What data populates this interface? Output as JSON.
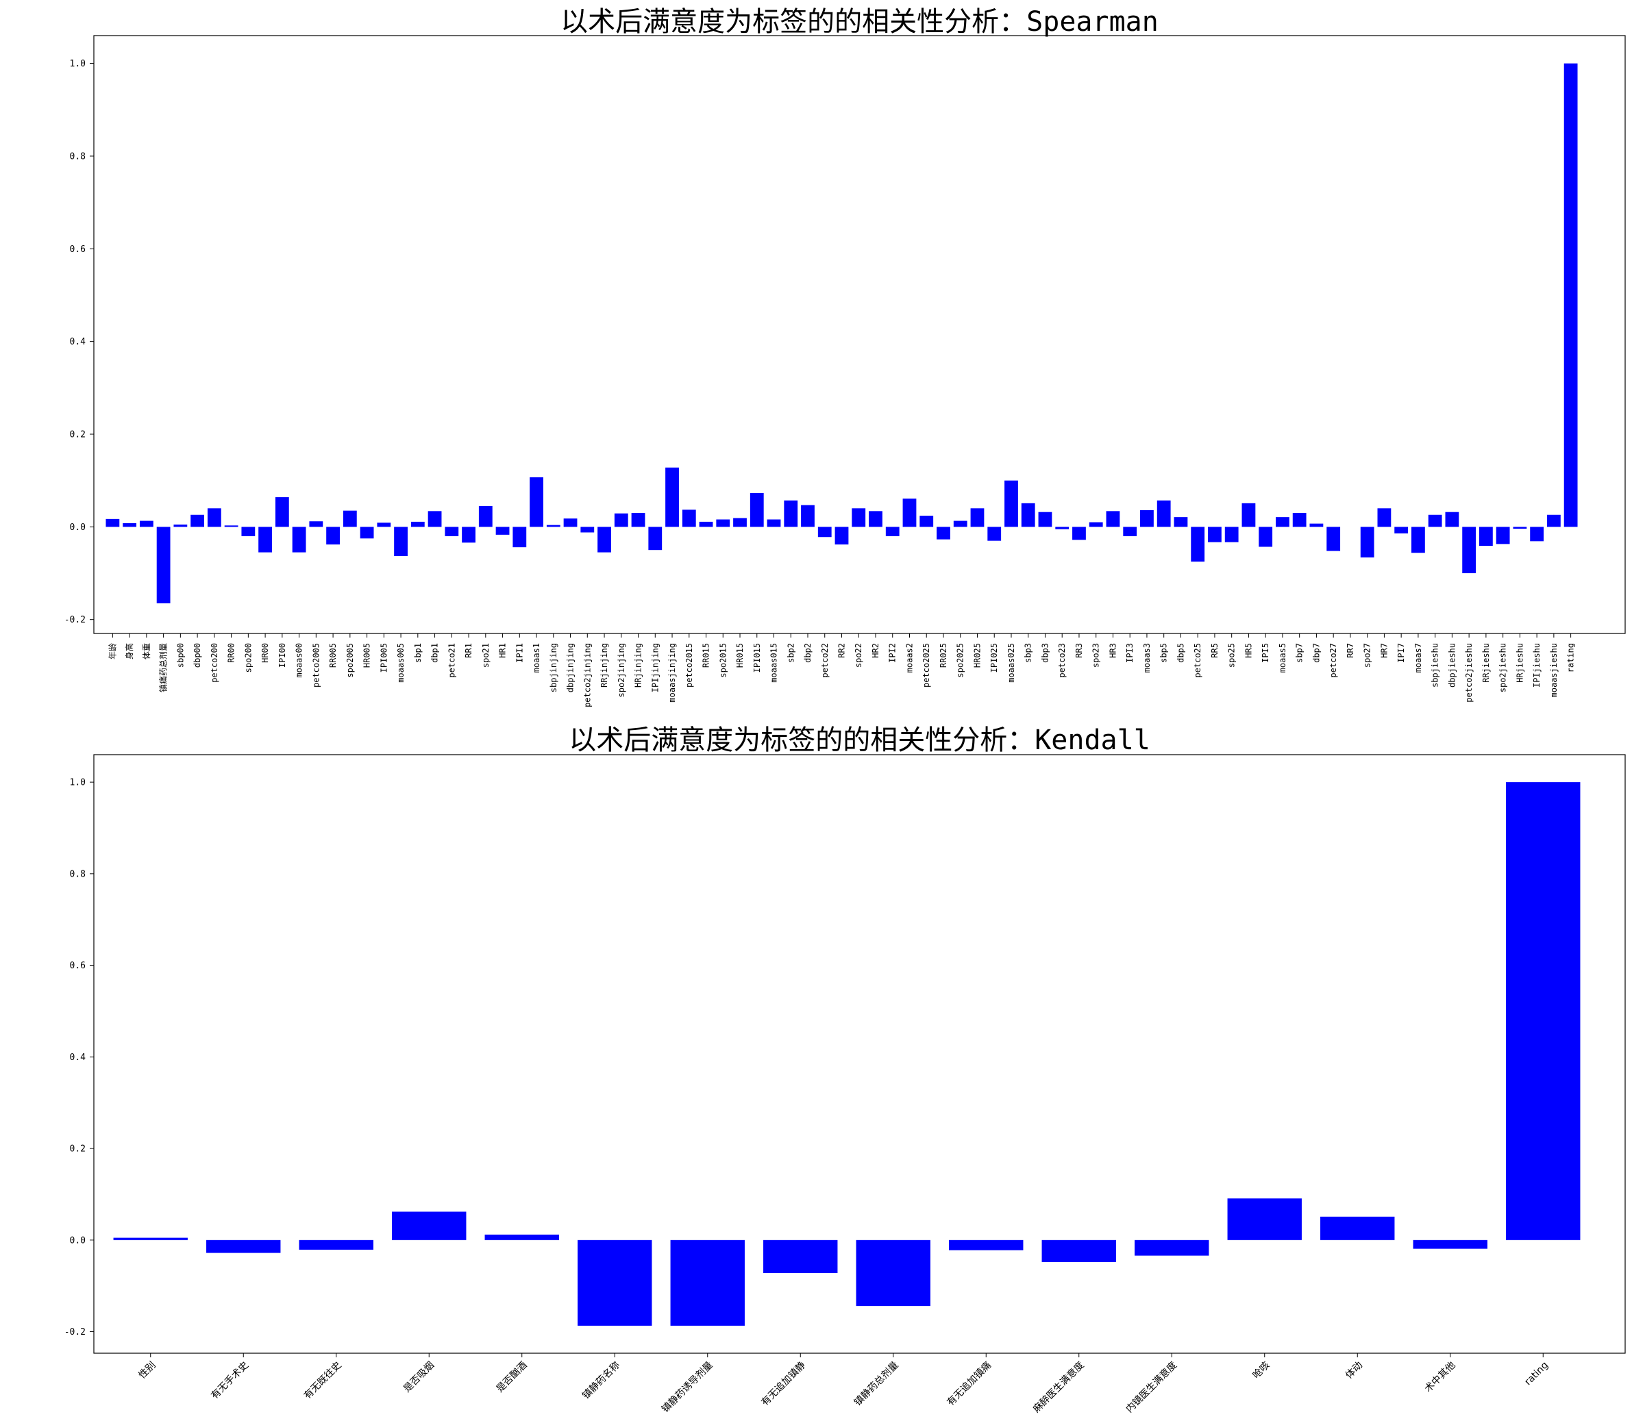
{
  "chart_data": [
    {
      "type": "bar",
      "title": "以术后满意度为标签的的相关性分析：Spearman",
      "xlabel": "",
      "ylabel": "",
      "ylim": [
        -0.23,
        1.06
      ],
      "yticks": [
        -0.2,
        0.0,
        0.2,
        0.4,
        0.6,
        0.8,
        1.0
      ],
      "ytick_labels": [
        "-0.2",
        "0.0",
        "0.2",
        "0.4",
        "0.6",
        "0.8",
        "1.0"
      ],
      "bar_color": "#0000ff",
      "grid": false,
      "tick_rotation": 90,
      "categories": [
        "年龄",
        "身高",
        "体重",
        "镇痛药总剂量",
        "sbp00",
        "dbp00",
        "petco200",
        "RR00",
        "spo200",
        "HR00",
        "IPI00",
        "moaas00",
        "petco2005",
        "RR005",
        "spo2005",
        "HR005",
        "IPI005",
        "moaas005",
        "sbp1",
        "dbp1",
        "petco21",
        "RR1",
        "spo21",
        "HR1",
        "IPI1",
        "moaas1",
        "sbpjinjing",
        "dbpjinjing",
        "petco2jinjing",
        "RRjinjing",
        "spo2jinjing",
        "HRjinjing",
        "IPIjinjing",
        "moaasjinjing",
        "petco2015",
        "RR015",
        "spo2015",
        "HR015",
        "IPI015",
        "moaas015",
        "sbp2",
        "dbp2",
        "petco22",
        "RR2",
        "spo22",
        "HR2",
        "IPI2",
        "moaas2",
        "petco2025",
        "RR025",
        "spo2025",
        "HR025",
        "IPI025",
        "moaas025",
        "sbp3",
        "dbp3",
        "petco23",
        "RR3",
        "spo23",
        "HR3",
        "IPI3",
        "moaas3",
        "sbp5",
        "dbp5",
        "petco25",
        "RR5",
        "spo25",
        "HR5",
        "IPI5",
        "moaas5",
        "sbp7",
        "dbp7",
        "petco27",
        "RR7",
        "spo27",
        "HR7",
        "IPI7",
        "moaas7",
        "sbpjieshu",
        "dbpjieshu",
        "petco2jieshu",
        "RRjieshu",
        "spo2jieshu",
        "HRjieshu",
        "IPIjieshu",
        "moaasjieshu",
        "rating"
      ],
      "values": [
        0.017,
        0.008,
        0.013,
        -0.165,
        0.005,
        0.026,
        0.04,
        0.003,
        -0.02,
        -0.055,
        0.064,
        -0.055,
        0.012,
        -0.038,
        0.035,
        -0.025,
        0.009,
        -0.063,
        0.011,
        0.034,
        -0.02,
        -0.034,
        0.045,
        -0.017,
        -0.044,
        0.107,
        0.004,
        0.018,
        -0.012,
        -0.055,
        0.029,
        0.03,
        -0.05,
        0.128,
        0.037,
        0.011,
        0.016,
        0.019,
        0.073,
        0.016,
        0.057,
        0.047,
        -0.022,
        -0.038,
        0.04,
        0.034,
        -0.02,
        0.061,
        0.024,
        -0.027,
        0.013,
        0.04,
        -0.03,
        0.1,
        0.051,
        0.032,
        -0.005,
        -0.028,
        0.01,
        0.034,
        -0.02,
        0.036,
        0.057,
        0.021,
        -0.075,
        -0.033,
        -0.033,
        0.051,
        -0.043,
        0.021,
        0.03,
        0.007,
        -0.052,
        0.0,
        -0.066,
        0.04,
        -0.014,
        -0.056,
        0.026,
        0.032,
        -0.1,
        -0.041,
        -0.037,
        -0.004,
        -0.031,
        0.026,
        1.0
      ]
    },
    {
      "type": "bar",
      "title": "以术后满意度为标签的的相关性分析：Kendall",
      "xlabel": "",
      "ylabel": "",
      "ylim": [
        -0.247,
        1.06
      ],
      "yticks": [
        -0.2,
        0.0,
        0.2,
        0.4,
        0.6,
        0.8,
        1.0
      ],
      "ytick_labels": [
        "-0.2",
        "0.0",
        "0.2",
        "0.4",
        "0.6",
        "0.8",
        "1.0"
      ],
      "bar_color": "#0000ff",
      "grid": false,
      "tick_rotation": 45,
      "categories": [
        "性别",
        "有无手术史",
        "有无既往史",
        "是否吸烟",
        "是否酗酒",
        "镇静药名称",
        "镇静药诱导剂量",
        "有无追加镇静",
        "镇静药总剂量",
        "有无追加镇痛",
        "麻醉医生满意度",
        "内镜医生满意度",
        "呛咳",
        "体动",
        "术中其他",
        "rating"
      ],
      "values": [
        0.005,
        -0.028,
        -0.021,
        0.062,
        0.012,
        -0.187,
        -0.187,
        -0.072,
        -0.144,
        -0.022,
        -0.048,
        -0.034,
        0.091,
        0.051,
        -0.019,
        1.0
      ]
    }
  ]
}
